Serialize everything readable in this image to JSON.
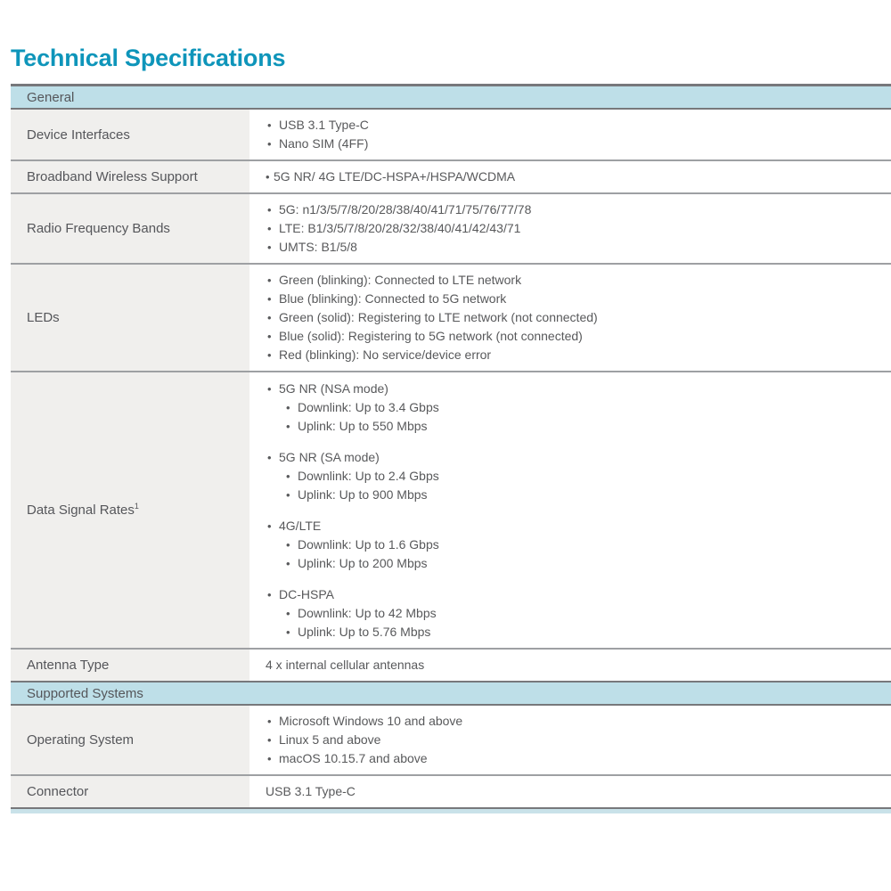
{
  "title": "Technical Specifications",
  "colors": {
    "accent_teal": "#0e95ba",
    "section_header_bg": "#bedfe8",
    "label_column_bg": "#f0efed",
    "text": "#58595b",
    "border_dark": "#77787b",
    "border_row": "#9ea0a3",
    "footer_strip": "#c9e2e9"
  },
  "sections": {
    "general": {
      "label": "General"
    },
    "supported_systems": {
      "label": "Supported Systems"
    }
  },
  "rows": {
    "device_interfaces": {
      "label": "Device Interfaces",
      "items": [
        "USB 3.1 Type-C",
        "Nano SIM (4FF)"
      ]
    },
    "broadband": {
      "label": "Broadband Wireless Support",
      "items": [
        "5G NR/ 4G LTE/DC-HSPA+/HSPA/WCDMA"
      ]
    },
    "radio_bands": {
      "label": "Radio Frequency Bands",
      "items": [
        "5G: n1/3/5/7/8/20/28/38/40/41/71/75/76/77/78",
        "LTE: B1/3/5/7/8/20/28/32/38/40/41/42/43/71",
        "UMTS: B1/5/8"
      ]
    },
    "leds": {
      "label": "LEDs",
      "items": [
        "Green (blinking): Connected to LTE network",
        "Blue (blinking): Connected to 5G network",
        "Green (solid): Registering to LTE network (not connected)",
        "Blue (solid): Registering to 5G network (not connected)",
        "Red (blinking): No service/device error"
      ]
    },
    "data_signal_rates": {
      "label": "Data Signal Rates",
      "footnote_sup": "1",
      "groups": [
        {
          "title": "5G NR (NSA mode)",
          "items": [
            "Downlink: Up to 3.4 Gbps",
            "Uplink: Up to 550 Mbps"
          ]
        },
        {
          "title": "5G NR (SA mode)",
          "items": [
            "Downlink: Up to 2.4 Gbps",
            "Uplink: Up to 900 Mbps"
          ]
        },
        {
          "title": "4G/LTE",
          "items": [
            "Downlink: Up to 1.6 Gbps",
            "Uplink: Up to 200 Mbps"
          ]
        },
        {
          "title": "DC-HSPA",
          "items": [
            "Downlink: Up to 42 Mbps",
            "Uplink: Up to 5.76 Mbps"
          ]
        }
      ]
    },
    "antenna_type": {
      "label": "Antenna Type",
      "value": "4 x internal cellular antennas"
    },
    "operating_system": {
      "label": "Operating System",
      "items": [
        "Microsoft Windows 10 and above",
        "Linux 5 and above",
        "macOS 10.15.7 and above"
      ]
    },
    "connector": {
      "label": "Connector",
      "value": "USB 3.1 Type-C"
    }
  }
}
